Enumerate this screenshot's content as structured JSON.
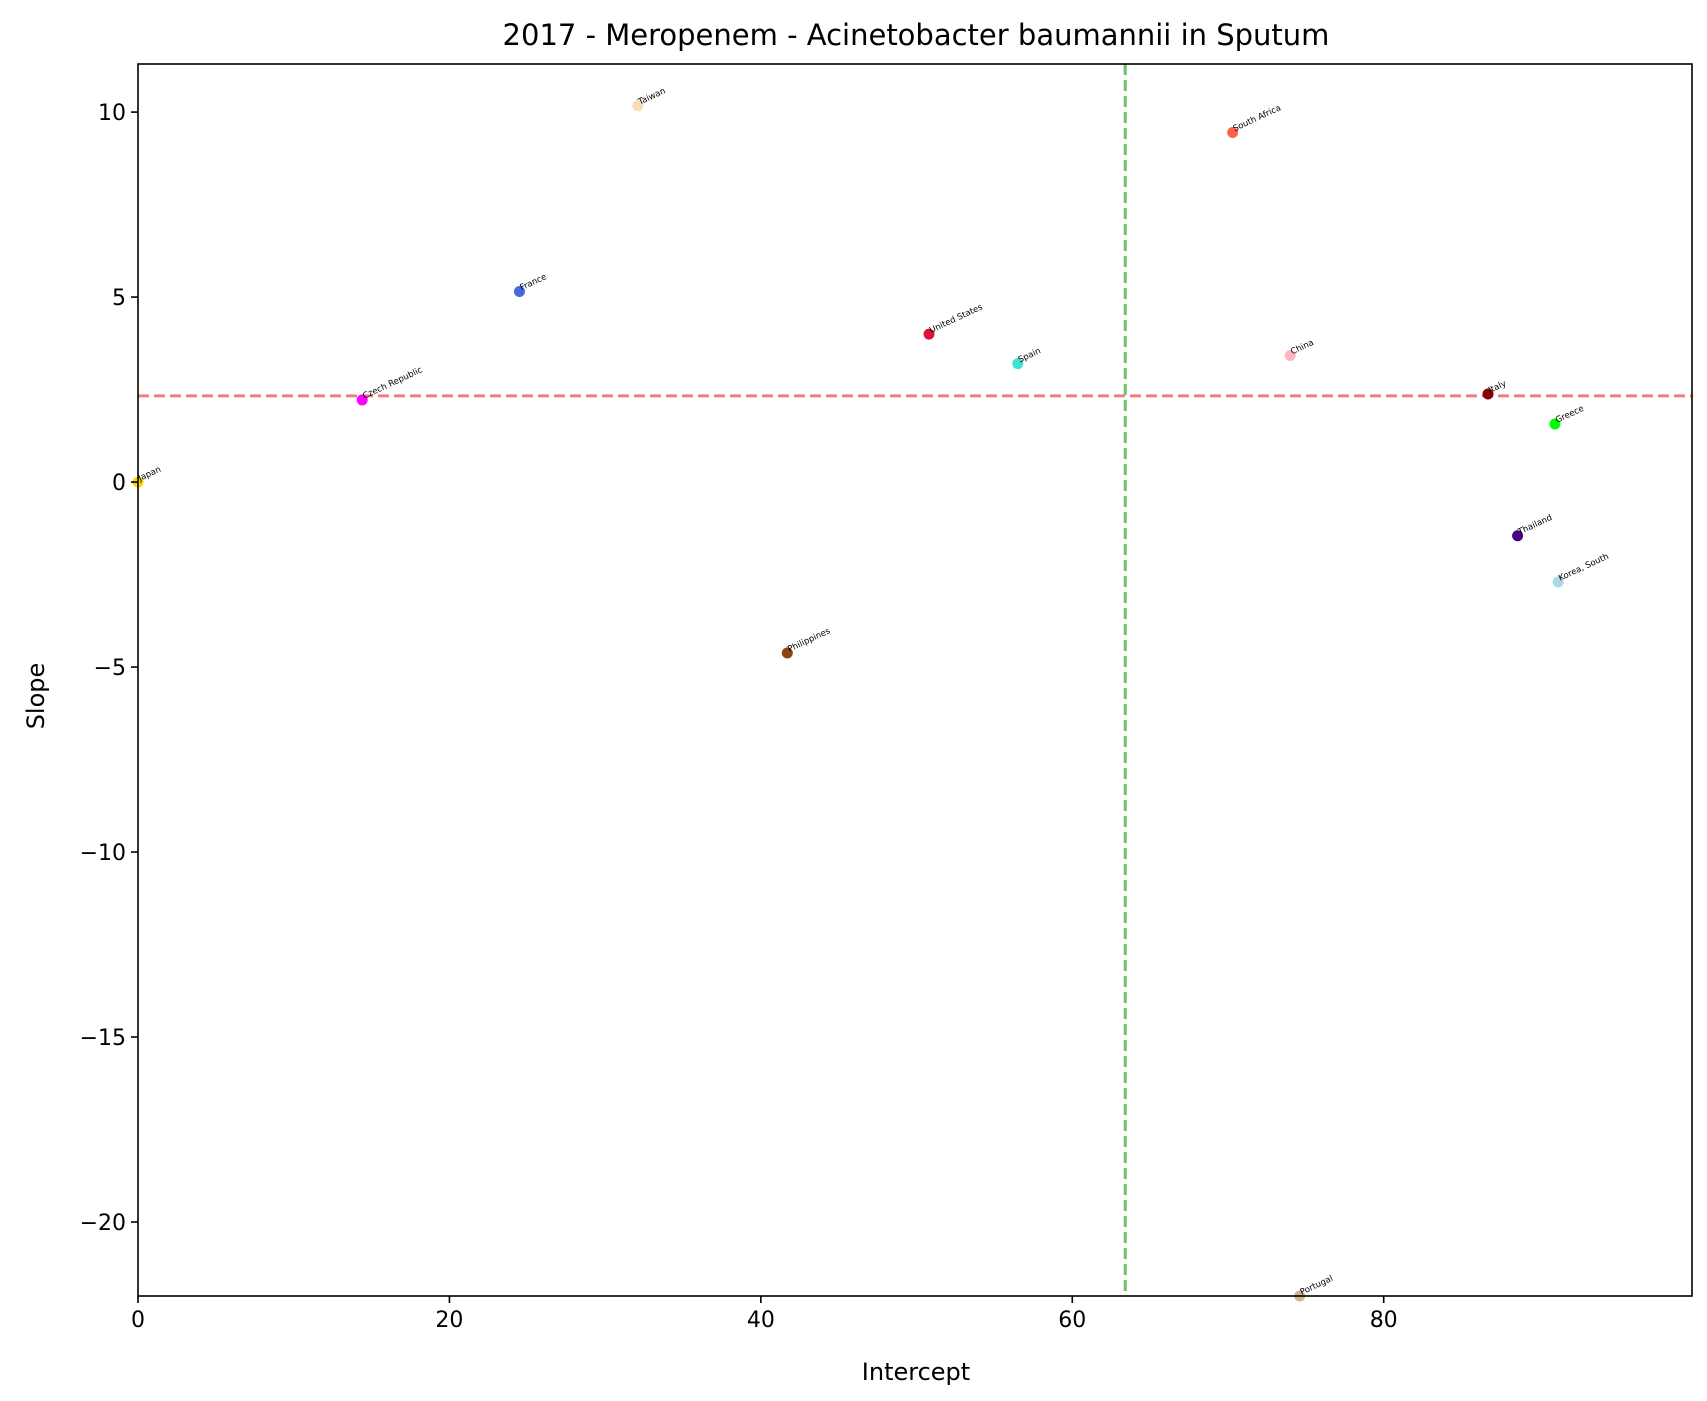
{
  "chart_data": {
    "type": "scatter",
    "title": "2017 - Meropenem - Acinetobacter baumannii in Sputum",
    "xlabel": "Intercept",
    "ylabel": "Slope",
    "xlim": [
      0,
      99.8
    ],
    "ylim": [
      -22,
      11.3
    ],
    "xticks": [
      0,
      20,
      40,
      60,
      80
    ],
    "xtick_labels": [
      "0",
      "20",
      "40",
      "60",
      "80"
    ],
    "yticks": [
      10,
      5,
      0,
      -5,
      -10,
      -15,
      -20
    ],
    "ytick_labels": [
      "10",
      "5",
      "0",
      "−5",
      "−10",
      "−15",
      "−20"
    ],
    "grid": false,
    "reference_lines": {
      "horizontal": {
        "y": 2.33,
        "color": "#f08080",
        "style": "dashed"
      },
      "vertical": {
        "x": 63.4,
        "color": "#6fbf6f",
        "style": "dashed"
      }
    },
    "points": [
      {
        "label": "Japan",
        "x": 0.0,
        "y": 0.0,
        "color": "#ffd700"
      },
      {
        "label": "Czech Republic",
        "x": 14.4,
        "y": 2.22,
        "color": "#ff00ff"
      },
      {
        "label": "France",
        "x": 24.5,
        "y": 5.15,
        "color": "#4169e1"
      },
      {
        "label": "Taiwan",
        "x": 32.1,
        "y": 10.17,
        "color": "#f5deb3"
      },
      {
        "label": "Philippines",
        "x": 41.7,
        "y": -4.62,
        "color": "#8b4513"
      },
      {
        "label": "United States",
        "x": 50.8,
        "y": 4.0,
        "color": "#dc143c"
      },
      {
        "label": "Spain",
        "x": 56.5,
        "y": 3.2,
        "color": "#40e0d0"
      },
      {
        "label": "South Africa",
        "x": 70.3,
        "y": 9.45,
        "color": "#ff6347"
      },
      {
        "label": "China",
        "x": 74.0,
        "y": 3.42,
        "color": "#ffb6c1"
      },
      {
        "label": "Portugal",
        "x": 74.6,
        "y": -22.0,
        "color": "#d2b48c"
      },
      {
        "label": "Italy",
        "x": 86.7,
        "y": 2.38,
        "color": "#8b0000"
      },
      {
        "label": "Thailand",
        "x": 88.6,
        "y": -1.45,
        "color": "#4b0082"
      },
      {
        "label": "Greece",
        "x": 91.0,
        "y": 1.57,
        "color": "#00ff00"
      },
      {
        "label": "Korea, South",
        "x": 91.2,
        "y": -2.7,
        "color": "#add8e6"
      }
    ]
  }
}
